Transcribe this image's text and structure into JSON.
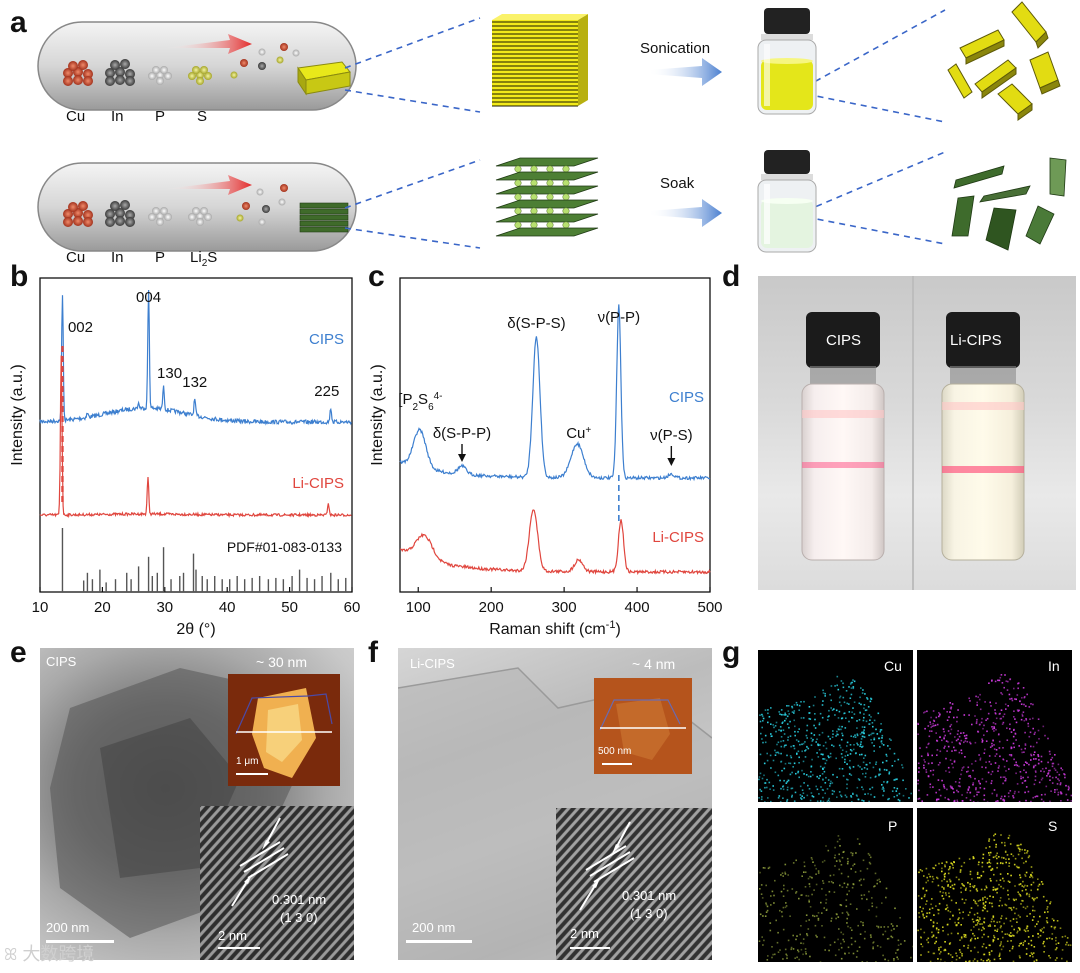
{
  "panels": {
    "a": "a",
    "b": "b",
    "c": "c",
    "d": "d",
    "e": "e",
    "f": "f",
    "g": "g"
  },
  "panel_a": {
    "row1_elements": [
      "Cu",
      "In",
      "P",
      "S"
    ],
    "row2_elements": [
      "Cu",
      "In",
      "P",
      "Li2S"
    ],
    "sonication": "Sonication",
    "soak": "Soak"
  },
  "panel_d": {
    "left_label": "CIPS",
    "right_label": "Li-CIPS"
  },
  "panel_e": {
    "corner": "CIPS",
    "thickness": "~ 30 nm",
    "afm_scale": "1 μm",
    "tem_scale": "200 nm",
    "hr_scale": "2 nm",
    "d_spacing": "0.301 nm",
    "plane": "(1 3 0)"
  },
  "panel_f": {
    "corner": "Li-CIPS",
    "thickness": "~ 4 nm",
    "afm_scale": "500 nm",
    "tem_scale": "200 nm",
    "hr_scale": "2 nm",
    "d_spacing": "0.301 nm",
    "plane": "(1 3 0)"
  },
  "panel_g": {
    "maps": [
      {
        "el": "Cu",
        "color": "#2ad4e6"
      },
      {
        "el": "In",
        "color": "#d03be0"
      },
      {
        "el": "P",
        "color": "#8a9a3a"
      },
      {
        "el": "S",
        "color": "#e0e020"
      }
    ]
  },
  "watermark": "大数跨境",
  "chart_data": [
    {
      "type": "line",
      "panel": "b",
      "xlabel": "2θ (°)",
      "ylabel": "Intensity (a.u.)",
      "xlim": [
        10,
        60
      ],
      "xticks": [
        10,
        20,
        30,
        40,
        50,
        60
      ],
      "series": [
        {
          "name": "CIPS",
          "color": "#3d7fcf",
          "peaks": [
            [
              13.6,
              "002"
            ],
            [
              27.4,
              "004"
            ],
            [
              29.8,
              "130"
            ],
            [
              34.8,
              "132"
            ],
            [
              56.6,
              "225"
            ]
          ]
        },
        {
          "name": "Li-CIPS",
          "color": "#e0463e",
          "peaks": [
            [
              13.4
            ],
            [
              27.3
            ],
            [
              56.2
            ]
          ]
        }
      ],
      "reference": "PDF#01-083-0133",
      "reference_sticks": [
        [
          13.6,
          1.0
        ],
        [
          17.0,
          0.18
        ],
        [
          17.6,
          0.3
        ],
        [
          18.4,
          0.2
        ],
        [
          19.6,
          0.35
        ],
        [
          20.6,
          0.15
        ],
        [
          22.1,
          0.2
        ],
        [
          23.9,
          0.3
        ],
        [
          24.6,
          0.2
        ],
        [
          25.8,
          0.4
        ],
        [
          27.4,
          0.55
        ],
        [
          28.0,
          0.25
        ],
        [
          28.8,
          0.3
        ],
        [
          29.8,
          0.7
        ],
        [
          31.0,
          0.2
        ],
        [
          32.4,
          0.25
        ],
        [
          33.0,
          0.3
        ],
        [
          34.6,
          0.6
        ],
        [
          35.0,
          0.35
        ],
        [
          36.0,
          0.25
        ],
        [
          36.8,
          0.2
        ],
        [
          38.0,
          0.25
        ],
        [
          39.2,
          0.2
        ],
        [
          40.4,
          0.2
        ],
        [
          41.6,
          0.25
        ],
        [
          42.8,
          0.2
        ],
        [
          44.0,
          0.22
        ],
        [
          45.2,
          0.25
        ],
        [
          46.6,
          0.2
        ],
        [
          47.8,
          0.22
        ],
        [
          49.0,
          0.2
        ],
        [
          50.4,
          0.25
        ],
        [
          51.6,
          0.35
        ],
        [
          52.8,
          0.22
        ],
        [
          54.0,
          0.2
        ],
        [
          55.2,
          0.25
        ],
        [
          56.6,
          0.3
        ],
        [
          57.8,
          0.2
        ],
        [
          59.0,
          0.22
        ]
      ]
    },
    {
      "type": "line",
      "panel": "c",
      "xlabel": "Raman shift (cm",
      "xlabel_sup": "-1",
      "xlabel_end": ")",
      "ylabel": "Intensity (a.u.)",
      "xlim": [
        75,
        500
      ],
      "xticks": [
        100,
        200,
        300,
        400,
        500
      ],
      "series": [
        {
          "name": "CIPS",
          "color": "#3d7fcf"
        },
        {
          "name": "Li-CIPS",
          "color": "#e0463e"
        }
      ],
      "annotations": [
        {
          "text": "[P",
          "sub": "2",
          "mid": "S",
          "sub2": "6",
          "sup": "4-",
          "x": 103
        },
        {
          "text": "δ(S-P-P)",
          "x": 160
        },
        {
          "text": "δ(S-P-S)",
          "x": 262
        },
        {
          "text": "Cu",
          "sup": "+",
          "x": 320
        },
        {
          "text": "ν(P-P)",
          "x": 375
        },
        {
          "text": "ν(P-S)",
          "x": 447
        }
      ]
    }
  ]
}
